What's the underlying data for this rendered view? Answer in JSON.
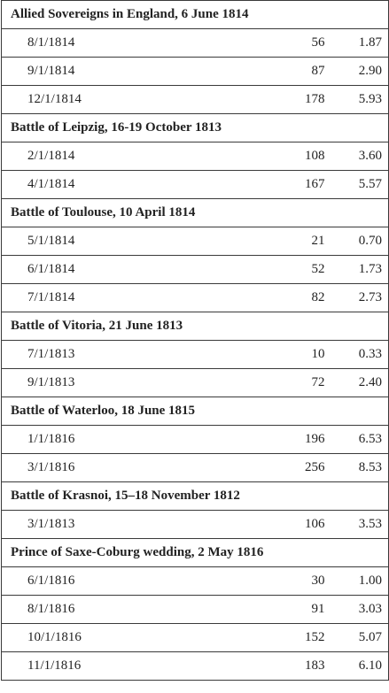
{
  "groups": [
    {
      "title": "Allied Sovereigns in England, 6 June 1814",
      "rows": [
        {
          "date": "8/1/1814",
          "count": "56",
          "rate": "1.87"
        },
        {
          "date": "9/1/1814",
          "count": "87",
          "rate": "2.90"
        },
        {
          "date": "12/1/1814",
          "count": "178",
          "rate": "5.93"
        }
      ]
    },
    {
      "title": "Battle of Leipzig, 16-19 October 1813",
      "rows": [
        {
          "date": "2/1/1814",
          "count": "108",
          "rate": "3.60"
        },
        {
          "date": "4/1/1814",
          "count": "167",
          "rate": "5.57"
        }
      ]
    },
    {
      "title": "Battle of Toulouse, 10 April 1814",
      "rows": [
        {
          "date": "5/1/1814",
          "count": "21",
          "rate": "0.70"
        },
        {
          "date": "6/1/1814",
          "count": "52",
          "rate": "1.73"
        },
        {
          "date": "7/1/1814",
          "count": "82",
          "rate": "2.73"
        }
      ]
    },
    {
      "title": "Battle of Vitoria, 21 June 1813",
      "rows": [
        {
          "date": "7/1/1813",
          "count": "10",
          "rate": "0.33"
        },
        {
          "date": "9/1/1813",
          "count": "72",
          "rate": "2.40"
        }
      ]
    },
    {
      "title": "Battle of Waterloo, 18 June 1815",
      "rows": [
        {
          "date": "1/1/1816",
          "count": "196",
          "rate": "6.53"
        },
        {
          "date": "3/1/1816",
          "count": "256",
          "rate": "8.53"
        }
      ]
    },
    {
      "title": "Battle of Krasnoi, 15–18 November 1812",
      "rows": [
        {
          "date": "3/1/1813",
          "count": "106",
          "rate": "3.53"
        }
      ]
    },
    {
      "title": "Prince of Saxe-Coburg wedding, 2 May 1816",
      "rows": [
        {
          "date": "6/1/1816",
          "count": "30",
          "rate": "1.00"
        },
        {
          "date": "8/1/1816",
          "count": "91",
          "rate": "3.03"
        },
        {
          "date": "10/1/1816",
          "count": "152",
          "rate": "5.07"
        },
        {
          "date": "11/1/1816",
          "count": "183",
          "rate": "6.10"
        }
      ]
    }
  ]
}
